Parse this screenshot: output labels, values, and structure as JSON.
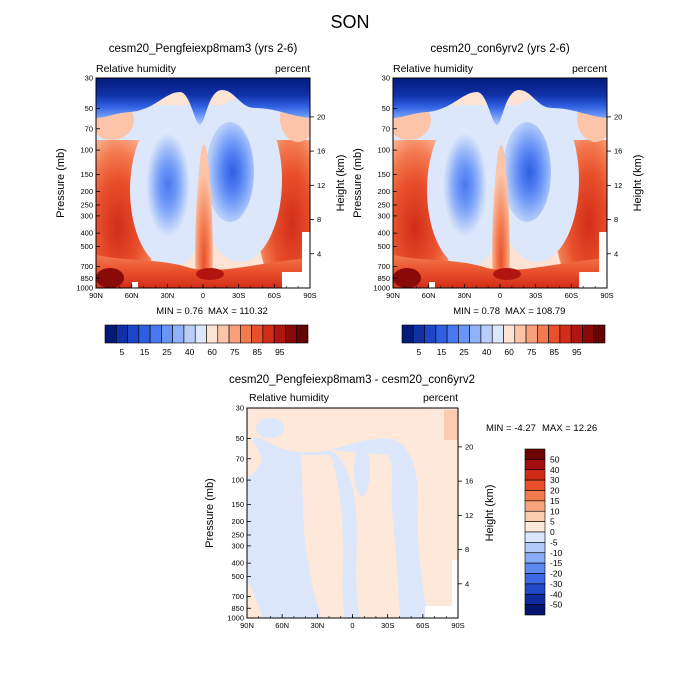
{
  "figure": {
    "title": "SON"
  },
  "chart_data": [
    {
      "type": "heatmap",
      "title": "cesm20_Pengfeiexp8mam3 (yrs 2-6)",
      "left_string": "Relative humidity",
      "right_string": "percent",
      "ylabel": "Pressure (mb)",
      "ylabel_right": "Height (km)",
      "x_ticks": [
        "90N",
        "60N",
        "30N",
        "0",
        "30S",
        "60S",
        "90S"
      ],
      "y_ticks": [
        "30",
        "50",
        "70",
        "100",
        "150",
        "200",
        "250",
        "300",
        "400",
        "500",
        "700",
        "850",
        "1000"
      ],
      "y_right_ticks": [
        "20",
        "16",
        "12",
        "8",
        "4"
      ],
      "min_label": "MIN =   0.76",
      "max_label": "MAX = 110.32",
      "colorbar": {
        "levels": [
          5,
          10,
          15,
          20,
          25,
          30,
          35,
          40,
          50,
          60,
          65,
          70,
          75,
          80,
          85,
          90,
          95
        ],
        "labels": [
          "5",
          "15",
          "25",
          "40",
          "60",
          "75",
          "85",
          "95"
        ],
        "colors": [
          "#021b7a",
          "#1030a8",
          "#1c45c8",
          "#2f5fe0",
          "#4a78ef",
          "#6a95f7",
          "#90b2f9",
          "#b8cef9",
          "#dce7fb",
          "#fde3d3",
          "#fcc4a8",
          "#f8a07c",
          "#f3794f",
          "#e8502c",
          "#d22d18",
          "#b01510",
          "#8a0a0a",
          "#650404"
        ]
      }
    },
    {
      "type": "heatmap",
      "title": "cesm20_con6yrv2 (yrs 2-6)",
      "left_string": "Relative humidity",
      "right_string": "percent",
      "ylabel": "Pressure (mb)",
      "ylabel_right": "Height (km)",
      "x_ticks": [
        "90N",
        "60N",
        "30N",
        "0",
        "30S",
        "60S",
        "90S"
      ],
      "y_ticks": [
        "30",
        "50",
        "70",
        "100",
        "150",
        "200",
        "250",
        "300",
        "400",
        "500",
        "700",
        "850",
        "1000"
      ],
      "y_right_ticks": [
        "20",
        "16",
        "12",
        "8",
        "4"
      ],
      "min_label": "MIN =   0.78",
      "max_label": "MAX = 108.79",
      "colorbar": {
        "labels": [
          "5",
          "15",
          "25",
          "40",
          "60",
          "75",
          "85",
          "95"
        ]
      }
    },
    {
      "type": "heatmap",
      "title": "cesm20_Pengfeiexp8mam3 - cesm20_con6yrv2",
      "left_string": "Relative humidity",
      "right_string": "percent",
      "ylabel": "Pressure (mb)",
      "ylabel_right": "Height (km)",
      "x_ticks": [
        "90N",
        "60N",
        "30N",
        "0",
        "30S",
        "60S",
        "90S"
      ],
      "y_ticks": [
        "30",
        "50",
        "70",
        "100",
        "150",
        "200",
        "250",
        "300",
        "400",
        "500",
        "700",
        "850",
        "1000"
      ],
      "y_right_ticks": [
        "20",
        "16",
        "12",
        "8",
        "4"
      ],
      "min_label": "MIN =  -4.27",
      "max_label": "MAX =  12.26",
      "colorbar": {
        "levels": [
          -50,
          -40,
          -30,
          -20,
          -15,
          -10,
          -5,
          0,
          5,
          10,
          15,
          20,
          30,
          40,
          50
        ],
        "labels": [
          "50",
          "40",
          "30",
          "20",
          "15",
          "10",
          "5",
          "0",
          "-5",
          "-10",
          "-15",
          "-20",
          "-30",
          "-40",
          "-50"
        ],
        "colors": [
          "#6b0203",
          "#a10d0d",
          "#cf2a16",
          "#e7502b",
          "#f27a4f",
          "#f8a57f",
          "#fccbb0",
          "#fde8da",
          "#d9e6fb",
          "#b1c9f8",
          "#88abf5",
          "#5f8af0",
          "#3d6ae4",
          "#2249c8",
          "#0f2a9d",
          "#03156e"
        ]
      }
    }
  ]
}
